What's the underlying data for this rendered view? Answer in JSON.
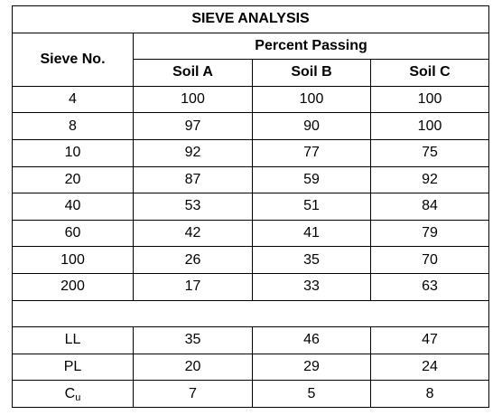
{
  "table": {
    "title": "SIEVE ANALYSIS",
    "row_header": "Sieve No.",
    "group_header": "Percent Passing",
    "columns": [
      "Soil A",
      "Soil B",
      "Soil C"
    ],
    "sieve_rows": [
      {
        "sieve": "4",
        "values": [
          "100",
          "100",
          "100"
        ]
      },
      {
        "sieve": "8",
        "values": [
          "97",
          "90",
          "100"
        ]
      },
      {
        "sieve": "10",
        "values": [
          "92",
          "77",
          "75"
        ]
      },
      {
        "sieve": "20",
        "values": [
          "87",
          "59",
          "92"
        ]
      },
      {
        "sieve": "40",
        "values": [
          "53",
          "51",
          "84"
        ]
      },
      {
        "sieve": "60",
        "values": [
          "42",
          "41",
          "79"
        ]
      },
      {
        "sieve": "100",
        "values": [
          "26",
          "35",
          "70"
        ]
      },
      {
        "sieve": "200",
        "values": [
          "17",
          "33",
          "63"
        ]
      }
    ],
    "property_rows": [
      {
        "label": "LL",
        "values": [
          "35",
          "46",
          "47"
        ]
      },
      {
        "label": "PL",
        "values": [
          "20",
          "29",
          "24"
        ]
      },
      {
        "label_main": "C",
        "label_sub": "u",
        "values": [
          "7",
          "5",
          "8"
        ]
      }
    ]
  }
}
